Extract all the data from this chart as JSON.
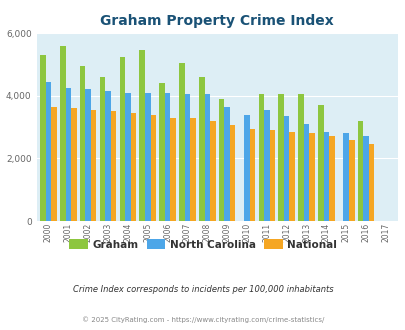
{
  "title": "Graham Property Crime Index",
  "years": [
    2000,
    2001,
    2002,
    2003,
    2004,
    2005,
    2006,
    2007,
    2008,
    2009,
    2010,
    2011,
    2012,
    2013,
    2014,
    2015,
    2016,
    2017
  ],
  "graham": [
    5300,
    5600,
    4950,
    4600,
    5250,
    5450,
    4400,
    5050,
    4600,
    3900,
    null,
    4050,
    4050,
    4050,
    3700,
    null,
    3200,
    null
  ],
  "north_carolina": [
    4450,
    4250,
    4200,
    4150,
    4100,
    4100,
    4100,
    4050,
    4050,
    3650,
    3400,
    3550,
    3350,
    3100,
    2850,
    2800,
    2700,
    null
  ],
  "national": [
    3650,
    3600,
    3550,
    3500,
    3450,
    3400,
    3300,
    3300,
    3200,
    3050,
    2950,
    2900,
    2850,
    2800,
    2700,
    2600,
    2450,
    null
  ],
  "graham_color": "#8dc63f",
  "nc_color": "#4da6e8",
  "national_color": "#f5a623",
  "bg_color": "#ddeef5",
  "ylim": [
    0,
    6000
  ],
  "yticks": [
    0,
    2000,
    4000,
    6000
  ],
  "title_color": "#1a5276",
  "legend_labels": [
    "Graham",
    "North Carolina",
    "National"
  ],
  "footnote1": "Crime Index corresponds to incidents per 100,000 inhabitants",
  "footnote2": "© 2025 CityRating.com - https://www.cityrating.com/crime-statistics/",
  "footnote_color1": "#333333",
  "footnote_color2": "#888888"
}
